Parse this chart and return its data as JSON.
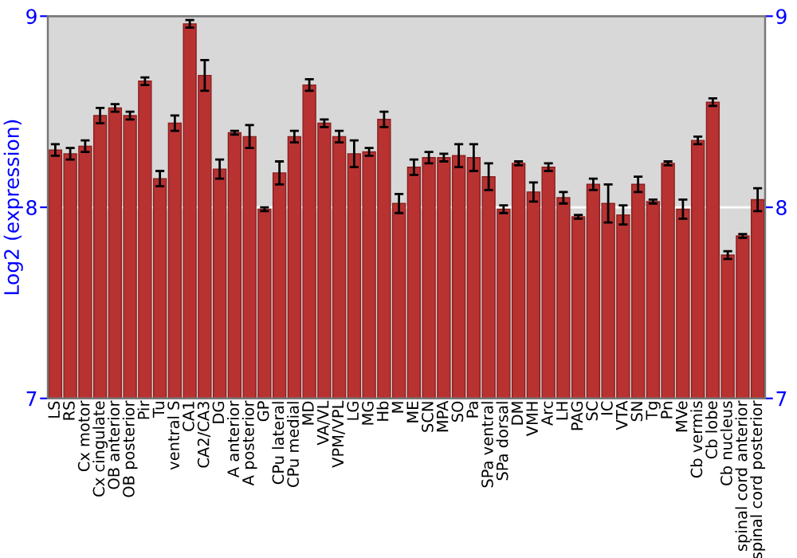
{
  "chart_data": {
    "type": "bar",
    "ylabel": "Log2 (expression)",
    "categories": [
      "LS",
      "RS",
      "Cx motor",
      "Cx cingulate",
      "OB anterior",
      "OB posterior",
      "Pir",
      "Tu",
      "ventral S",
      "CA1",
      "CA2/CA3",
      "DG",
      "A anterior",
      "A posterior",
      "GP",
      "CPu lateral",
      "CPu medial",
      "MD",
      "VA/VL",
      "VPM/VPL",
      "LG",
      "MG",
      "Hb",
      "M",
      "ME",
      "SCN",
      "MPA",
      "SO",
      "Pa",
      "SPa ventral",
      "SPa dorsal",
      "DM",
      "VMH",
      "Arc",
      "LH",
      "PAG",
      "SC",
      "IC",
      "VTA",
      "SN",
      "Tg",
      "Pn",
      "MVe",
      "Cb vermis",
      "Cb lobe",
      "Cb nucleus",
      "spinal cord anterior",
      "spinal cord posterior"
    ],
    "values": [
      8.3,
      8.28,
      8.32,
      8.48,
      8.52,
      8.48,
      8.66,
      8.15,
      8.44,
      8.96,
      8.69,
      8.2,
      8.39,
      8.37,
      7.99,
      8.18,
      8.37,
      8.64,
      8.44,
      8.37,
      8.28,
      8.29,
      8.46,
      8.02,
      8.21,
      8.26,
      8.26,
      8.27,
      8.26,
      8.16,
      7.99,
      8.23,
      8.08,
      8.21,
      8.05,
      7.95,
      8.12,
      8.02,
      7.96,
      8.12,
      8.03,
      8.23,
      7.99,
      8.35,
      8.55,
      7.75,
      7.85,
      8.04
    ],
    "errors": [
      0.03,
      0.03,
      0.03,
      0.04,
      0.02,
      0.02,
      0.02,
      0.04,
      0.04,
      0.02,
      0.08,
      0.05,
      0.01,
      0.06,
      0.01,
      0.06,
      0.03,
      0.03,
      0.02,
      0.03,
      0.07,
      0.02,
      0.04,
      0.05,
      0.04,
      0.03,
      0.02,
      0.06,
      0.07,
      0.07,
      0.02,
      0.01,
      0.05,
      0.02,
      0.03,
      0.01,
      0.03,
      0.1,
      0.05,
      0.04,
      0.01,
      0.01,
      0.05,
      0.02,
      0.02,
      0.02,
      0.01,
      0.06
    ],
    "color": "#b83232",
    "ylim": [
      7,
      9
    ],
    "yticks": [
      7,
      8,
      9
    ],
    "y2lim": [
      7,
      9
    ],
    "y2ticks": [
      7,
      8,
      9
    ],
    "grid": "y"
  }
}
